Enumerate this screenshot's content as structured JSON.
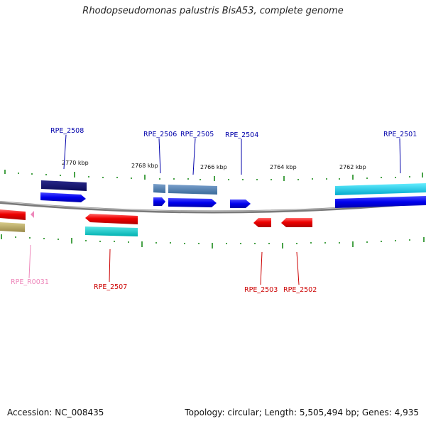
{
  "title": "Rhodopseudomonas palustris BisA53, complete genome",
  "footer": {
    "accession": "Accession: NC_008435",
    "stats": "Topology: circular; Length: 5,505,494 bp; Genes: 4,935"
  },
  "scale_labels": [
    "2770 kbp",
    "2768 kbp",
    "2766 kbp",
    "2764 kbp",
    "2762 kbp"
  ],
  "colors": {
    "backbone": "#7a7a7a",
    "tick": "#1a8a1a",
    "forward_label": "#0000aa",
    "reverse_label": "#cc0000",
    "rna_label": "#ee88bb"
  },
  "gene_labels": [
    {
      "id": "RPE_2508",
      "strand": "forward"
    },
    {
      "id": "RPE_2506",
      "strand": "forward"
    },
    {
      "id": "RPE_2505",
      "strand": "forward"
    },
    {
      "id": "RPE_2504",
      "strand": "forward"
    },
    {
      "id": "RPE_2501",
      "strand": "forward"
    },
    {
      "id": "RPE_R0031",
      "strand": "rna"
    },
    {
      "id": "RPE_2507",
      "strand": "reverse"
    },
    {
      "id": "RPE_2503",
      "strand": "reverse"
    },
    {
      "id": "RPE_2502",
      "strand": "reverse"
    }
  ]
}
